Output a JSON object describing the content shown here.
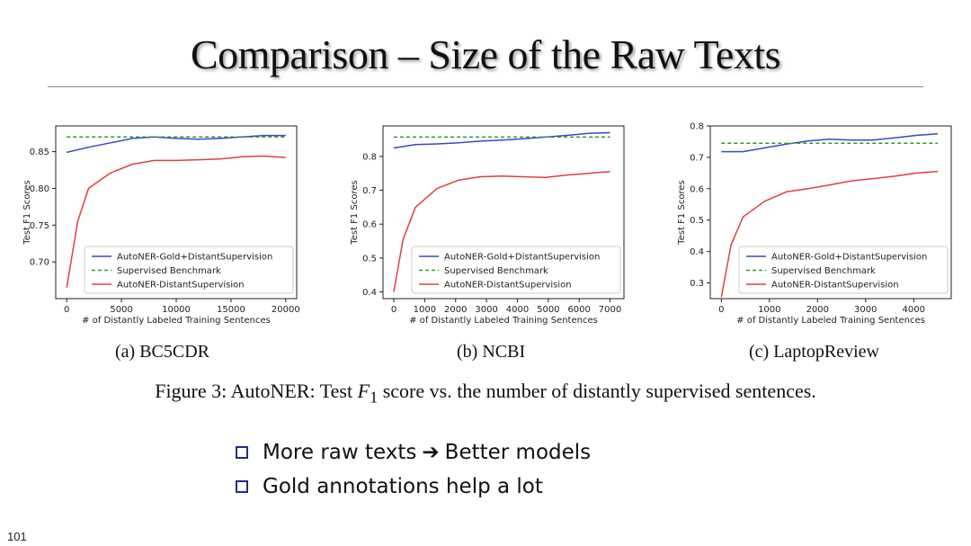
{
  "slide": {
    "title": "Comparison  – Size of the Raw Texts",
    "caption_prefix": "Figure 3: AutoNER: Test ",
    "caption_var": "F",
    "caption_sub": "1",
    "caption_suffix": " score vs. the number of distantly supervised sentences.",
    "bullets": [
      {
        "before": "More raw texts ",
        "arrow": "➔",
        "after": " Better models"
      },
      {
        "text": "Gold annotations help a lot"
      }
    ],
    "page_number": "101"
  },
  "colors": {
    "blue": "#3b47c9",
    "green": "#2f9a2f",
    "red": "#e0403c",
    "bullet_box": "#1f2e8c"
  },
  "chart_data": [
    {
      "type": "line",
      "subtitle": "(a)  BC5CDR",
      "xlabel": "# of Distantly Labeled Training Sentences",
      "ylabel": "Test F1 Scores",
      "xlim": [
        -1000,
        21000
      ],
      "ylim": [
        0.65,
        0.885
      ],
      "xticks": [
        0,
        5000,
        10000,
        15000,
        20000
      ],
      "yticks": [
        0.7,
        0.75,
        0.8,
        0.85
      ],
      "ytick_labels": [
        "0.70",
        "0.75",
        "0.80",
        "0.85"
      ],
      "legend": "bottom-right",
      "series": [
        {
          "name": "AutoNER-Gold+DistantSupervision",
          "color": "blue",
          "style": "solid",
          "x": [
            0,
            2000,
            4000,
            6000,
            8000,
            10000,
            12000,
            14000,
            16000,
            18000,
            20000
          ],
          "y": [
            0.849,
            0.856,
            0.862,
            0.868,
            0.87,
            0.868,
            0.867,
            0.868,
            0.87,
            0.872,
            0.872
          ]
        },
        {
          "name": "Supervised Benchmark",
          "color": "green",
          "style": "dashed",
          "x": [
            0,
            20000
          ],
          "y": [
            0.87,
            0.87
          ]
        },
        {
          "name": "AutoNER-DistantSupervision",
          "color": "red",
          "style": "solid",
          "x": [
            0,
            1000,
            2000,
            4000,
            6000,
            8000,
            10000,
            12000,
            14000,
            16000,
            18000,
            20000
          ],
          "y": [
            0.665,
            0.755,
            0.8,
            0.821,
            0.833,
            0.838,
            0.838,
            0.839,
            0.84,
            0.843,
            0.844,
            0.842
          ]
        }
      ]
    },
    {
      "type": "line",
      "subtitle": "(b)  NCBI",
      "xlabel": "# of Distantly Labeled Training Sentences",
      "ylabel": "Test F1 Scores",
      "xlim": [
        -350,
        7450
      ],
      "ylim": [
        0.38,
        0.89
      ],
      "xticks": [
        0,
        1000,
        2000,
        3000,
        4000,
        5000,
        6000,
        7000
      ],
      "yticks": [
        0.4,
        0.5,
        0.6,
        0.7,
        0.8
      ],
      "ytick_labels": [
        "0.4",
        "0.5",
        "0.6",
        "0.7",
        "0.8"
      ],
      "legend": "bottom-right",
      "series": [
        {
          "name": "AutoNER-Gold+DistantSupervision",
          "color": "blue",
          "style": "solid",
          "x": [
            0,
            700,
            1400,
            2100,
            2800,
            3500,
            4200,
            4900,
            5600,
            6300,
            7000
          ],
          "y": [
            0.825,
            0.835,
            0.837,
            0.84,
            0.845,
            0.848,
            0.852,
            0.857,
            0.862,
            0.868,
            0.87
          ]
        },
        {
          "name": "Supervised Benchmark",
          "color": "green",
          "style": "dashed",
          "x": [
            0,
            7000
          ],
          "y": [
            0.857,
            0.857
          ]
        },
        {
          "name": "AutoNER-DistantSupervision",
          "color": "red",
          "style": "solid",
          "x": [
            0,
            300,
            700,
            1400,
            2100,
            2800,
            3500,
            4200,
            4900,
            5600,
            6300,
            7000
          ],
          "y": [
            0.4,
            0.555,
            0.65,
            0.705,
            0.73,
            0.74,
            0.742,
            0.74,
            0.738,
            0.745,
            0.75,
            0.755
          ]
        }
      ]
    },
    {
      "type": "line",
      "subtitle": "(c)  LaptopReview",
      "xlabel": "# of Distantly Labeled Training Sentences",
      "ylabel": "Test F1 Scores",
      "xlim": [
        -230,
        4780
      ],
      "ylim": [
        0.25,
        0.8
      ],
      "xticks": [
        0,
        1000,
        2000,
        3000,
        4000
      ],
      "yticks": [
        0.3,
        0.4,
        0.5,
        0.6,
        0.7,
        0.8
      ],
      "ytick_labels": [
        "0.3",
        "0.4",
        "0.5",
        "0.6",
        "0.7",
        "0.8"
      ],
      "legend": "bottom-right",
      "series": [
        {
          "name": "AutoNER-Gold+DistantSupervision",
          "color": "blue",
          "style": "solid",
          "x": [
            0,
            450,
            900,
            1350,
            1800,
            2250,
            2700,
            3150,
            3600,
            4050,
            4500
          ],
          "y": [
            0.718,
            0.718,
            0.73,
            0.742,
            0.752,
            0.758,
            0.755,
            0.755,
            0.762,
            0.77,
            0.775
          ]
        },
        {
          "name": "Supervised Benchmark",
          "color": "green",
          "style": "dashed",
          "x": [
            0,
            4500
          ],
          "y": [
            0.745,
            0.745
          ]
        },
        {
          "name": "AutoNER-DistantSupervision",
          "color": "red",
          "style": "solid",
          "x": [
            0,
            200,
            450,
            900,
            1350,
            1800,
            2250,
            2700,
            3150,
            3600,
            4050,
            4500
          ],
          "y": [
            0.255,
            0.42,
            0.51,
            0.56,
            0.59,
            0.6,
            0.612,
            0.625,
            0.632,
            0.64,
            0.65,
            0.655
          ]
        }
      ]
    }
  ]
}
